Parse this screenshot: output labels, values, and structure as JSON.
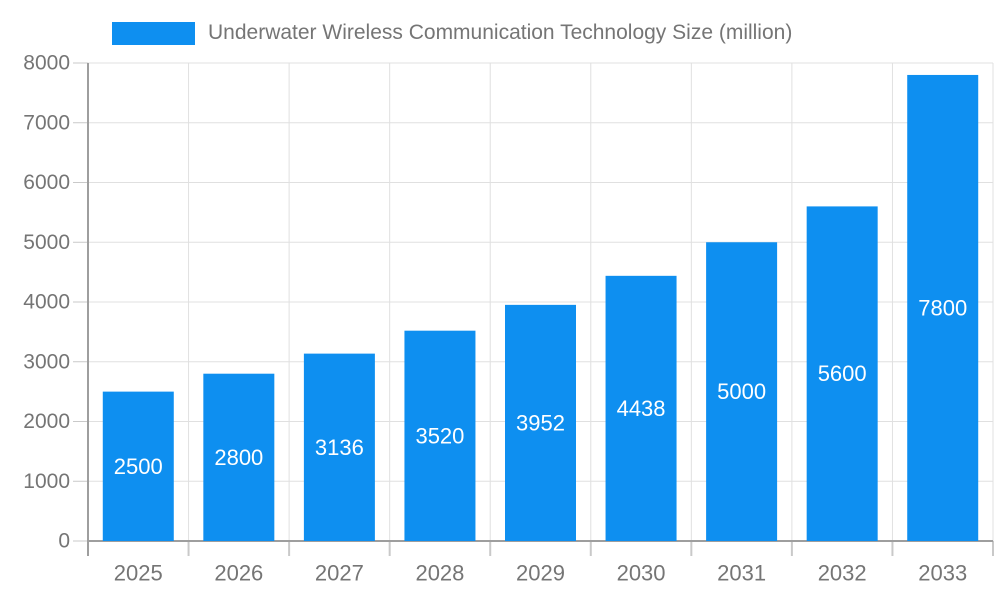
{
  "chart_data": {
    "type": "bar",
    "title": "Underwater Wireless Communication Technology Size (million)",
    "series_name": "Underwater Wireless Communication Technology Size (million)",
    "categories": [
      "2025",
      "2026",
      "2027",
      "2028",
      "2029",
      "2030",
      "2031",
      "2032",
      "2033"
    ],
    "values": [
      2500,
      2800,
      3136,
      3520,
      3952,
      4438,
      5000,
      5600,
      7800
    ],
    "value_labels": [
      "2500",
      "2800",
      "3136",
      "3520",
      "3952",
      "4438",
      "5000",
      "5600",
      "7800"
    ],
    "xlabel": "",
    "ylabel": "",
    "ylim": [
      0,
      8000
    ],
    "ytick_step": 1000,
    "ytick_labels": [
      "0",
      "1000",
      "2000",
      "3000",
      "4000",
      "5000",
      "6000",
      "7000",
      "8000"
    ],
    "grid": true,
    "legend_position": "top-left",
    "colors": {
      "bar": "#0e8ff0",
      "axis_label": "#757575",
      "grid": "#e0e0e0",
      "axis_line": "#9e9e9e",
      "tick": "#c9c9c9",
      "value_label": "#ffffff",
      "background": "#ffffff"
    }
  }
}
